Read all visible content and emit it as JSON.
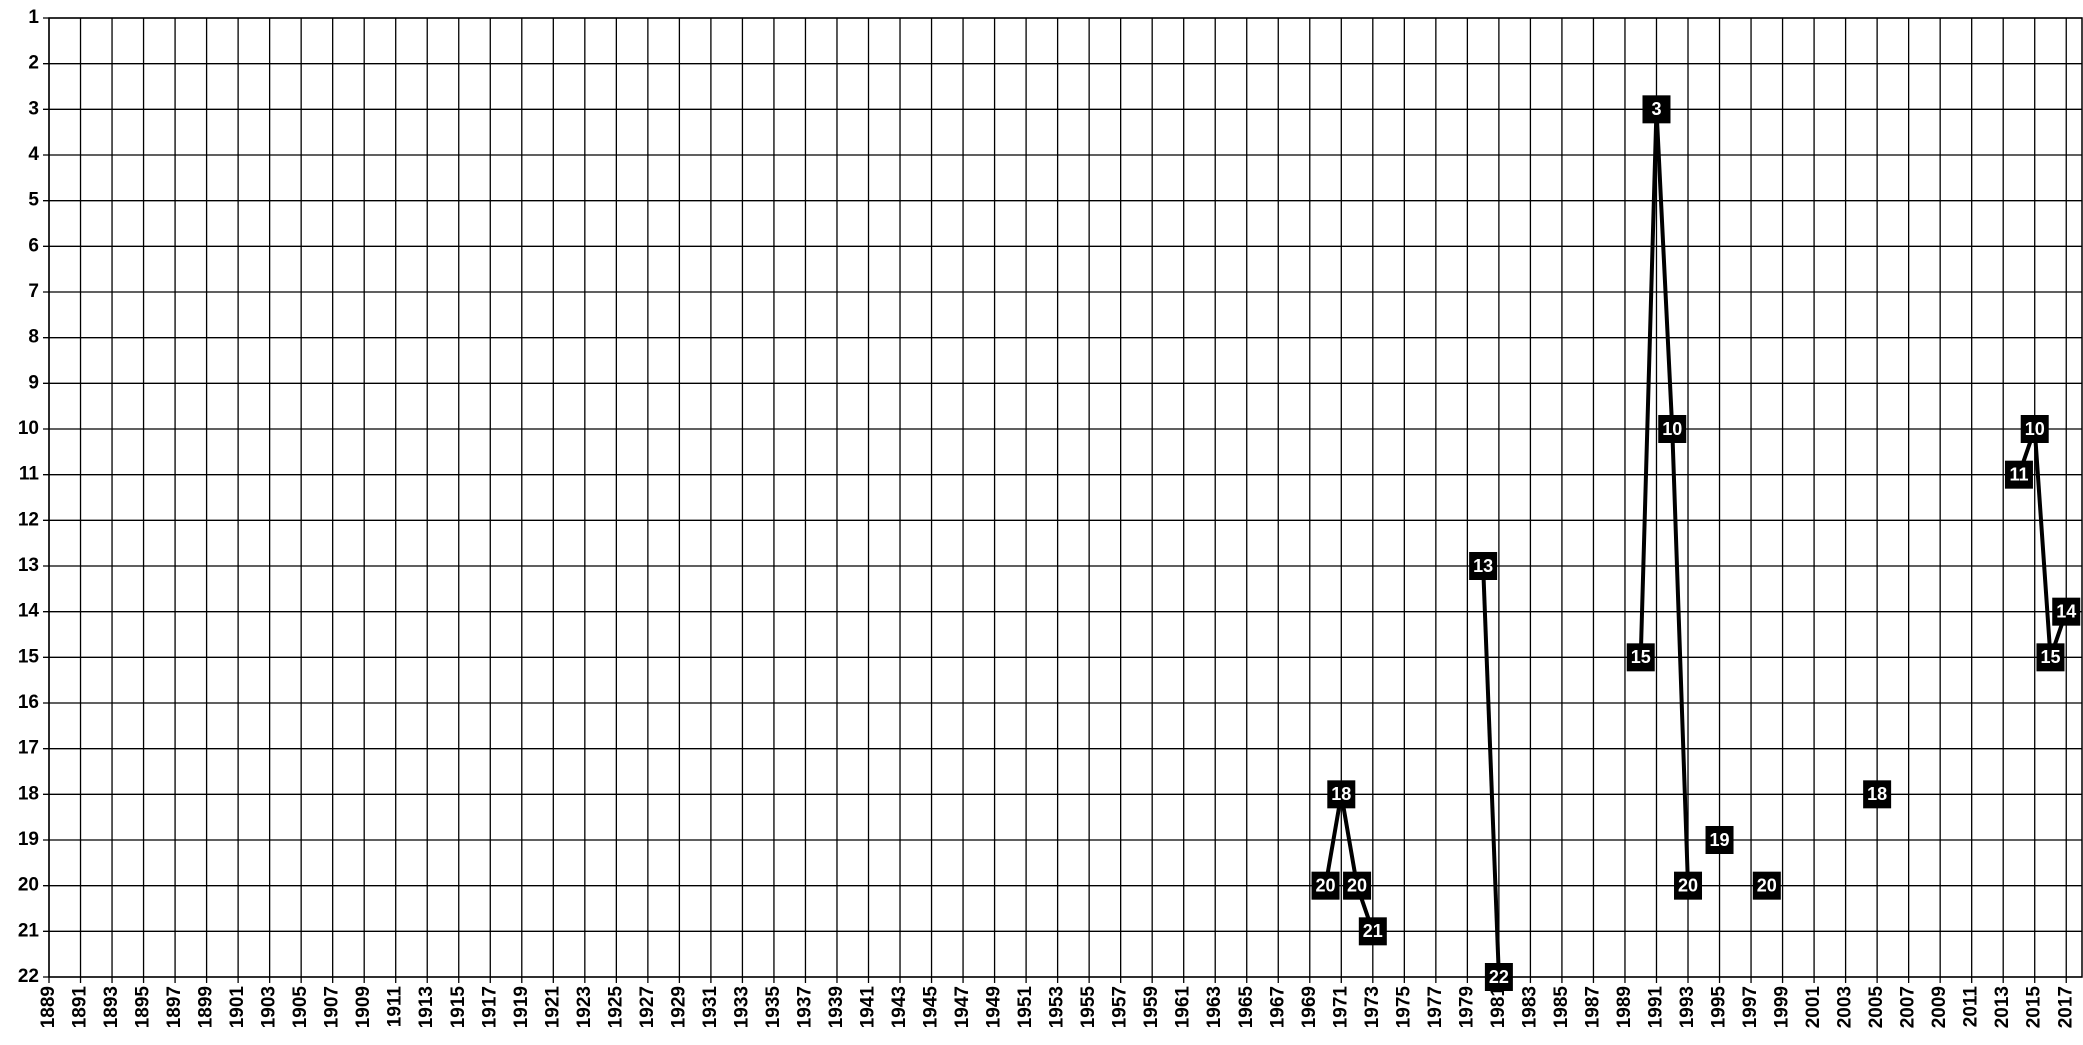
{
  "chart_data": {
    "type": "line",
    "x": [
      1970,
      1971,
      1972,
      1973,
      1974,
      1980,
      1981,
      1982,
      1990,
      1991,
      1992,
      1993,
      1994,
      1995,
      1996,
      1998,
      1999,
      2005,
      2006,
      2014,
      2015,
      2016,
      2017
    ],
    "series": [
      {
        "color": "#000000",
        "values": [
          20,
          18,
          20,
          21,
          null,
          13,
          22,
          null,
          15,
          3,
          10,
          20,
          null,
          19,
          null,
          20,
          null,
          18,
          null,
          11,
          10,
          15,
          14
        ]
      }
    ],
    "xlim": [
      1889,
      2018
    ],
    "xticks": [
      1889,
      1891,
      1893,
      1895,
      1897,
      1899,
      1901,
      1903,
      1905,
      1907,
      1909,
      1911,
      1913,
      1915,
      1917,
      1919,
      1921,
      1923,
      1925,
      1927,
      1929,
      1931,
      1933,
      1935,
      1937,
      1939,
      1941,
      1943,
      1945,
      1947,
      1949,
      1951,
      1953,
      1955,
      1957,
      1959,
      1961,
      1963,
      1965,
      1967,
      1969,
      1971,
      1973,
      1975,
      1977,
      1979,
      1981,
      1983,
      1985,
      1987,
      1989,
      1991,
      1993,
      1995,
      1997,
      1999,
      2001,
      2003,
      2005,
      2007,
      2009,
      2011,
      2013,
      2015,
      2017
    ],
    "ylim": [
      1,
      22
    ],
    "y_inverted": true,
    "yticks": [
      1,
      2,
      3,
      4,
      5,
      6,
      7,
      8,
      9,
      10,
      11,
      12,
      13,
      14,
      15,
      16,
      17,
      18,
      19,
      20,
      21,
      22
    ],
    "grid": true,
    "data_labels": true
  }
}
